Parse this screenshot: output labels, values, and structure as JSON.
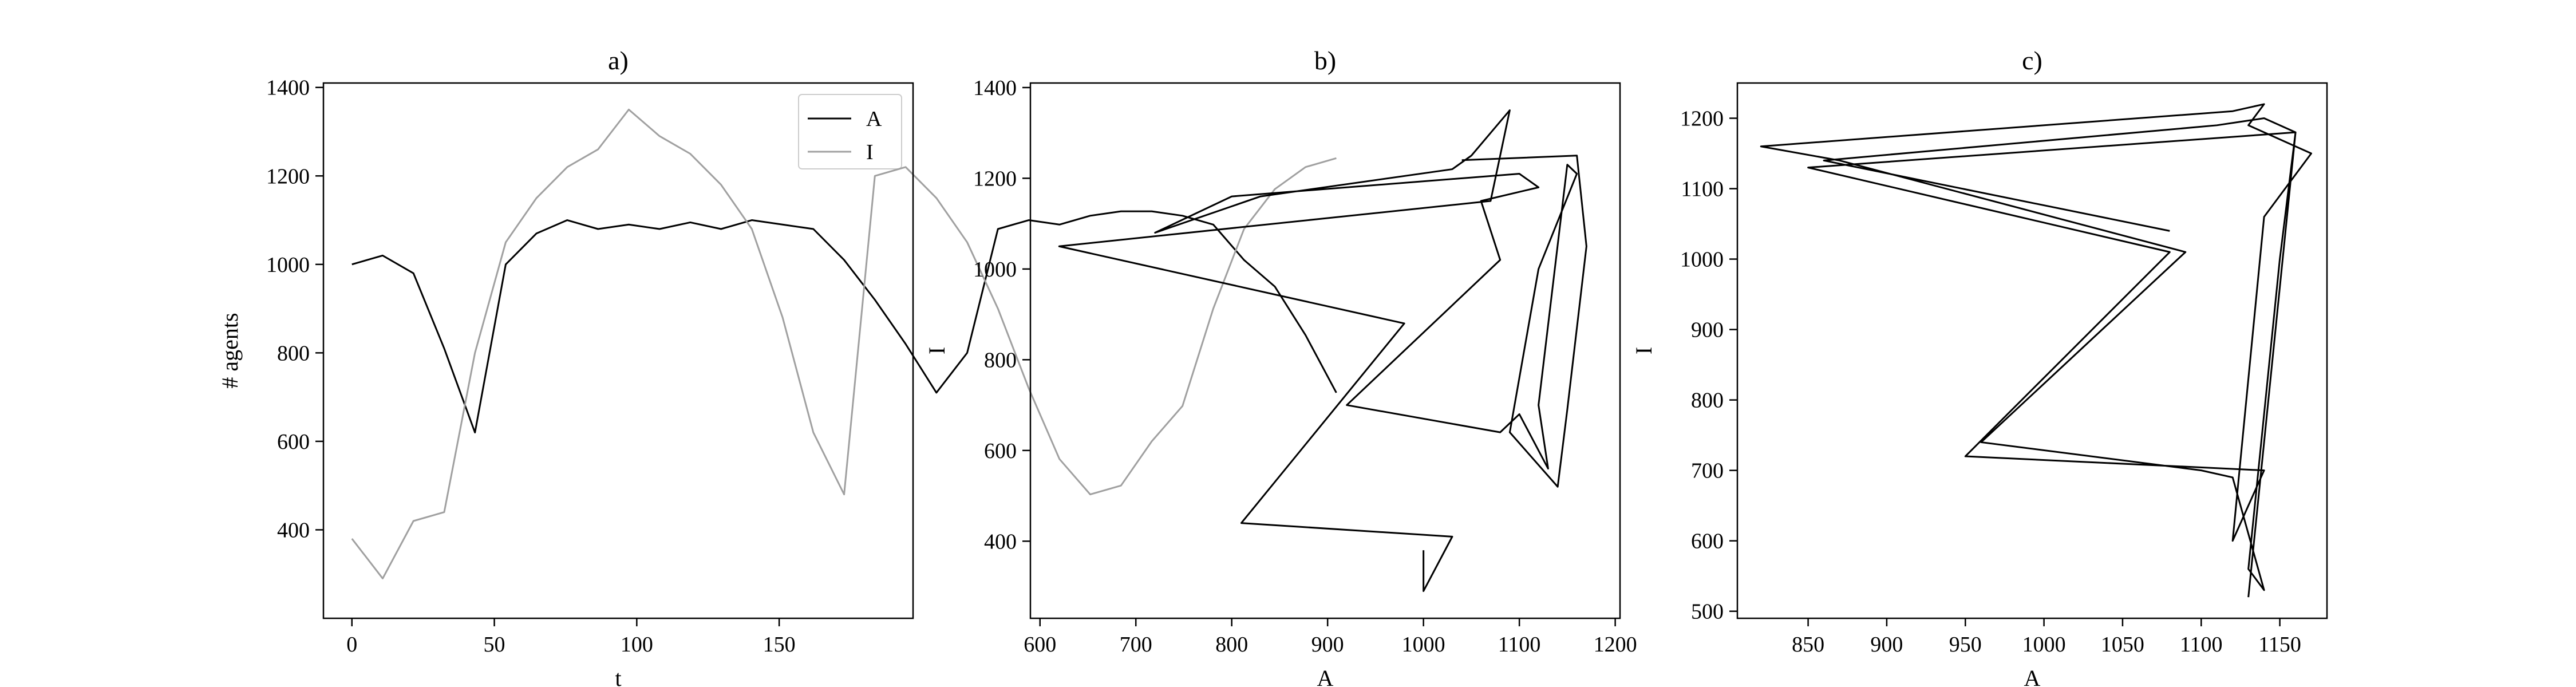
{
  "colors": {
    "A": "#000000",
    "I": "#a0a0a0"
  },
  "chart_data": [
    {
      "type": "line",
      "title": "a)",
      "xlabel": "t",
      "ylabel": "# agents",
      "xlim": [
        -10,
        197
      ],
      "ylim": [
        200,
        1410
      ],
      "xticks": [
        0,
        50,
        100,
        150
      ],
      "yticks": [
        400,
        600,
        800,
        1000,
        1200,
        1400
      ],
      "legend": "upper-right",
      "series": [
        {
          "name": "A",
          "color": "#000000",
          "period": 10.8,
          "values": [
            1000,
            1020,
            980,
            810,
            620,
            1000,
            1070,
            1100,
            1080,
            1090,
            1080,
            1095,
            1080,
            1100,
            1090,
            1080,
            1010,
            920,
            820,
            710,
            800,
            1080,
            1100,
            1090,
            1110,
            1120,
            1120,
            1110,
            1090,
            1010,
            950,
            840,
            710
          ]
        },
        {
          "name": "I",
          "color": "#a0a0a0",
          "period": 10.8,
          "values": [
            380,
            290,
            420,
            440,
            800,
            1050,
            1150,
            1220,
            1260,
            1350,
            1290,
            1250,
            1180,
            1080,
            880,
            620,
            480,
            1200,
            1220,
            1150,
            1050,
            900,
            720,
            560,
            480,
            500,
            600,
            680,
            900,
            1080,
            1170,
            1220,
            1240
          ]
        }
      ]
    },
    {
      "type": "line",
      "title": "b)",
      "xlabel": "A",
      "ylabel": "I",
      "xlim": [
        590,
        1205
      ],
      "ylim": [
        230,
        1410
      ],
      "xticks": [
        600,
        700,
        800,
        900,
        1000,
        1100,
        1200
      ],
      "yticks": [
        400,
        600,
        800,
        1000,
        1200,
        1400
      ],
      "points": [
        [
          1000,
          380
        ],
        [
          1000,
          290
        ],
        [
          1030,
          410
        ],
        [
          810,
          440
        ],
        [
          980,
          880
        ],
        [
          620,
          1050
        ],
        [
          1070,
          1150
        ],
        [
          1080,
          1250
        ],
        [
          1090,
          1350
        ],
        [
          1050,
          1250
        ],
        [
          1030,
          1220
        ],
        [
          830,
          1160
        ],
        [
          720,
          1080
        ],
        [
          800,
          1160
        ],
        [
          1100,
          1210
        ],
        [
          1120,
          1180
        ],
        [
          1060,
          1150
        ],
        [
          1080,
          1020
        ],
        [
          920,
          700
        ],
        [
          1080,
          640
        ],
        [
          1100,
          680
        ],
        [
          1130,
          560
        ],
        [
          1120,
          700
        ],
        [
          1150,
          1230
        ],
        [
          1160,
          1210
        ],
        [
          1120,
          1000
        ],
        [
          1090,
          640
        ],
        [
          1140,
          520
        ],
        [
          1150,
          690
        ],
        [
          1170,
          1050
        ],
        [
          1160,
          1250
        ],
        [
          1040,
          1240
        ]
      ]
    },
    {
      "type": "line",
      "title": "c)",
      "xlabel": "A",
      "ylabel": "I",
      "xlim": [
        805,
        1180
      ],
      "ylim": [
        490,
        1250
      ],
      "xticks": [
        850,
        900,
        950,
        1000,
        1050,
        1100,
        1150
      ],
      "yticks": [
        500,
        600,
        700,
        800,
        900,
        1000,
        1100,
        1200
      ],
      "points": [
        [
          1080,
          1040
        ],
        [
          860,
          1140
        ],
        [
          1110,
          1190
        ],
        [
          1140,
          1200
        ],
        [
          1160,
          1180
        ],
        [
          1150,
          1000
        ],
        [
          1130,
          560
        ],
        [
          1140,
          530
        ],
        [
          1120,
          690
        ],
        [
          1100,
          700
        ],
        [
          960,
          740
        ],
        [
          1090,
          1010
        ],
        [
          870,
          1140
        ],
        [
          820,
          1160
        ],
        [
          1120,
          1210
        ],
        [
          1140,
          1220
        ],
        [
          1130,
          1190
        ],
        [
          1170,
          1150
        ],
        [
          1140,
          1060
        ],
        [
          1120,
          600
        ],
        [
          1140,
          700
        ],
        [
          950,
          720
        ],
        [
          1080,
          1010
        ],
        [
          850,
          1130
        ],
        [
          1160,
          1180
        ],
        [
          1130,
          520
        ]
      ]
    }
  ]
}
